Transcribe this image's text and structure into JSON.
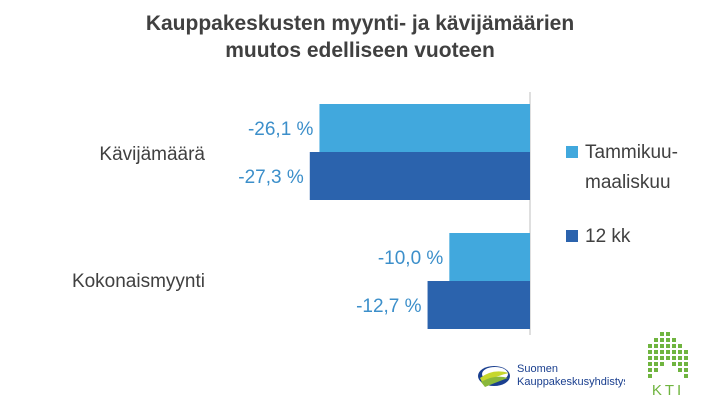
{
  "chart_data": {
    "type": "bar",
    "orientation": "horizontal",
    "title_lines": [
      "Kauppakeskusten myynti- ja kävijämäärien",
      "muutos edelliseen vuoteen"
    ],
    "categories": [
      "Kävijämäärä",
      "Kokonaismyynti"
    ],
    "series": [
      {
        "name": "Tammikuu-maaliskuu",
        "legend_lines": [
          "Tammikuu-",
          "maaliskuu"
        ],
        "color": "#41a8dd",
        "values": [
          -26.1,
          -10.0
        ],
        "labels": [
          "-26,1 %",
          "-10,0 %"
        ]
      },
      {
        "name": "12 kk",
        "legend_lines": [
          "12 kk"
        ],
        "color": "#2b63ad",
        "values": [
          -27.3,
          -12.7
        ],
        "labels": [
          "-27,3 %",
          "-12,7 %"
        ]
      }
    ],
    "xlim": [
      -30,
      0
    ],
    "grid": false,
    "legend": "right",
    "label_color": "#3c8fca",
    "axis_color": "#bfbfbf"
  },
  "logos": {
    "suomen": {
      "line1": "Suomen",
      "line2": "Kauppakeskusyhdistys",
      "icon": "swoosh-icon"
    },
    "kti": {
      "text": "KTI",
      "icon": "building-icon"
    }
  }
}
